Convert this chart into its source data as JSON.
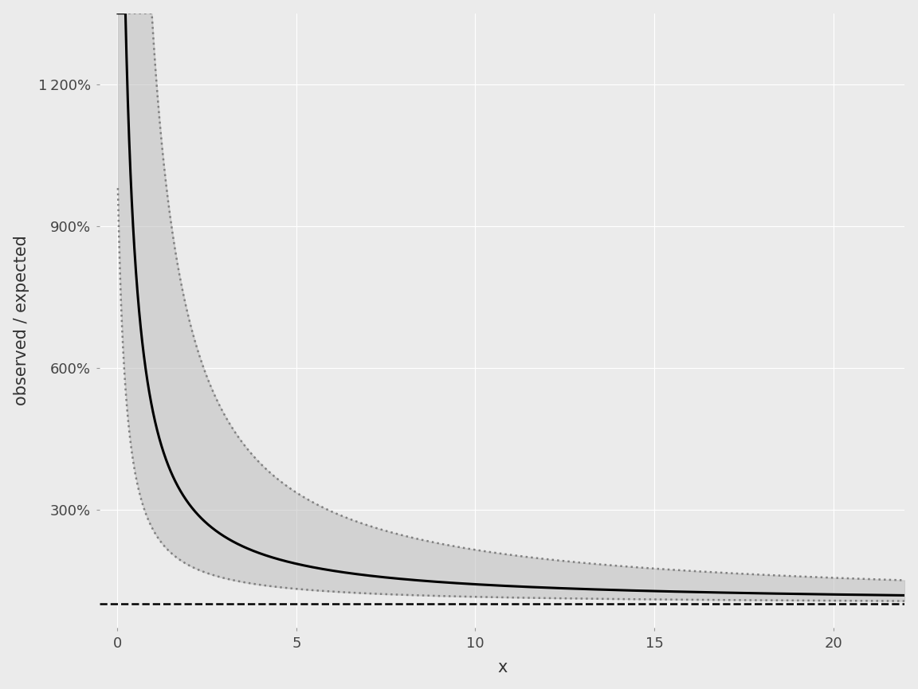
{
  "title": "",
  "xlabel": "x",
  "ylabel": "observed / expected",
  "xlim": [
    -0.5,
    22
  ],
  "ylim": [
    0.5,
    13.5
  ],
  "yticks": [
    3,
    6,
    9,
    12
  ],
  "ytick_labels": [
    "300%",
    "600%",
    "900%",
    "1 200%"
  ],
  "xticks": [
    0,
    5,
    10,
    15,
    20
  ],
  "dashed_line_y": 1.0,
  "background_color": "#EBEBEB",
  "grid_color": "#FFFFFF",
  "shade_color": "#BEBEBE",
  "dotted_color": "#808080",
  "solid_color": "#000000",
  "dashed_color": "#000000",
  "curve_x_end": 22,
  "A_main": 4.8,
  "B_main": 0.18,
  "p_main": 1.05,
  "A_upper": 13.0,
  "B_upper": 0.08,
  "p_upper": 1.05,
  "A_lower": 2.0,
  "B_lower": 0.25,
  "p_lower": 1.1
}
